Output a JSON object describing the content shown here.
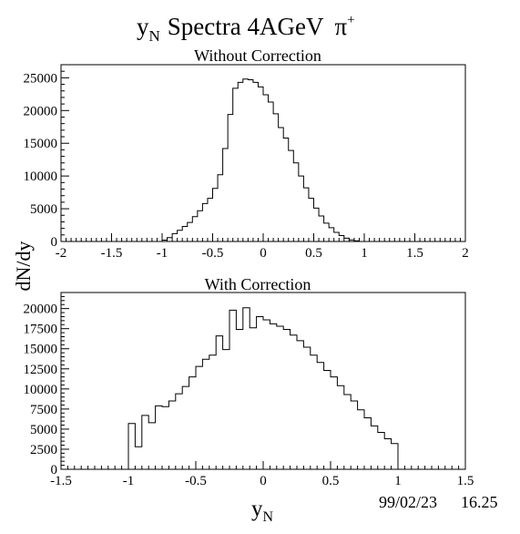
{
  "figure": {
    "title_main": "y",
    "title_sub": "N",
    "title_rest": "Spectra 4AGeV",
    "title_particle": "π",
    "title_particle_sup": "+",
    "ylabel": "dN/dy",
    "xlabel_main": "y",
    "xlabel_sub": "N",
    "datestamp": "99/02/23",
    "timestamp": "16.25"
  },
  "chart_data": [
    {
      "type": "histogram",
      "title": "Without Correction",
      "xlim": [
        -2,
        2
      ],
      "ylim": [
        0,
        27000
      ],
      "x_ticks": [
        -2,
        -1.5,
        -1,
        -0.5,
        0,
        0.5,
        1,
        1.5,
        2
      ],
      "x_tick_labels": [
        "-2",
        "-1.5",
        "-1",
        "-0.5",
        "0",
        "0.5",
        "1",
        "1.5",
        "2"
      ],
      "y_ticks": [
        0,
        5000,
        10000,
        15000,
        20000,
        25000
      ],
      "y_tick_labels": [
        "0",
        "5000",
        "10000",
        "15000",
        "20000",
        "25000"
      ],
      "bin_start": -1.1,
      "bin_width": 0.05,
      "values": [
        0,
        0,
        200,
        600,
        1200,
        1700,
        2300,
        2900,
        3800,
        4700,
        5800,
        6600,
        8100,
        10200,
        14200,
        19400,
        23400,
        24300,
        24800,
        24700,
        24300,
        23600,
        22400,
        21300,
        19500,
        17400,
        15800,
        13900,
        12000,
        10000,
        8200,
        6600,
        5100,
        3900,
        2800,
        2100,
        1400,
        900,
        500,
        250,
        100,
        0
      ]
    },
    {
      "type": "histogram",
      "title": "With Correction",
      "xlim": [
        -1.5,
        1.5
      ],
      "ylim": [
        0,
        22000
      ],
      "x_ticks": [
        -1.5,
        -1,
        -0.5,
        0,
        0.5,
        1,
        1.5
      ],
      "x_tick_labels": [
        "-1.5",
        "-1",
        "-0.5",
        "0",
        "0.5",
        "1",
        "1.5"
      ],
      "y_ticks": [
        0,
        2500,
        5000,
        7500,
        10000,
        12500,
        15000,
        17500,
        20000
      ],
      "y_tick_labels": [
        "0",
        "2500",
        "5000",
        "7500",
        "10000",
        "12500",
        "15000",
        "17500",
        "20000"
      ],
      "bin_start": -1.0,
      "bin_width": 0.05,
      "values": [
        5700,
        2800,
        6700,
        5800,
        7900,
        7800,
        8500,
        9400,
        10300,
        11500,
        12800,
        13700,
        14200,
        16600,
        14900,
        19800,
        17400,
        20100,
        17600,
        19000,
        18600,
        18100,
        17800,
        17400,
        16700,
        16000,
        15200,
        14200,
        13300,
        12300,
        11500,
        10400,
        9300,
        8500,
        7400,
        6400,
        5400,
        4600,
        3800,
        3200
      ]
    }
  ]
}
